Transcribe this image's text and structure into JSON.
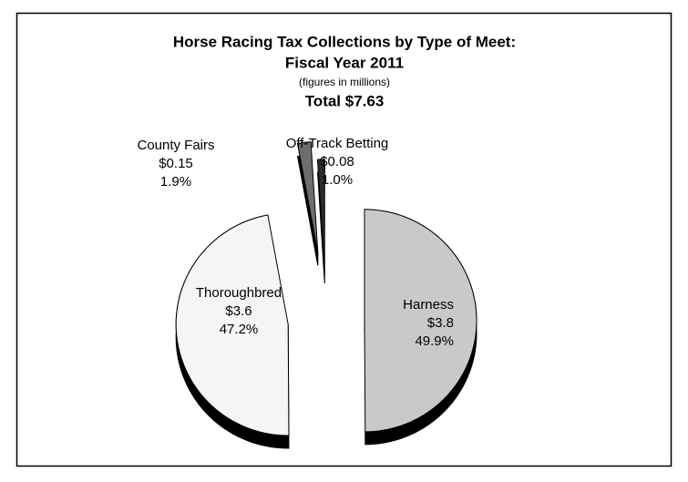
{
  "chart_data": {
    "type": "pie",
    "title": [
      "Horse Racing Tax Collections by Type of Meet:",
      "Fiscal Year 2011"
    ],
    "subtitle": "(figures in millions)",
    "total": "Total $7.63",
    "categories": [
      "Harness",
      "Thoroughbred",
      "County Fairs",
      "Off-Track Betting"
    ],
    "values": [
      49.9,
      47.2,
      1.9,
      1.0
    ],
    "value_labels": [
      "49.9%",
      "47.2%",
      "1.9%",
      "1.0%"
    ],
    "amounts": [
      3.8,
      3.6,
      0.15,
      0.08
    ],
    "amount_labels": [
      "$3.8",
      "$3.6",
      "$0.15",
      "$0.08"
    ],
    "colors": [
      "#c9c9c9",
      "#f5f5f5",
      "#6e6e6e",
      "#2c2c2c"
    ]
  }
}
